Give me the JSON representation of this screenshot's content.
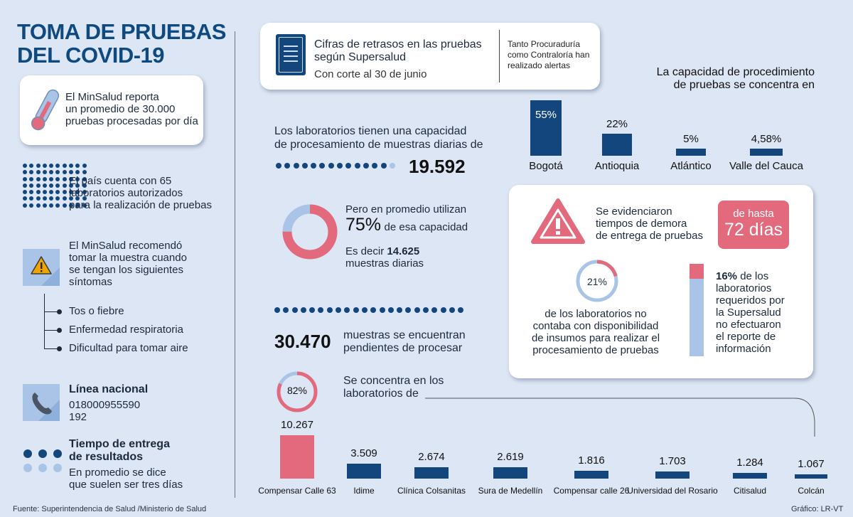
{
  "header": {
    "title_line1": "TOMA DE PRUEBAS",
    "title_line2": "DEL COVID-19"
  },
  "left": {
    "minsalud_report": [
      "El MinSalud reporta",
      "un promedio de 30.000",
      "pruebas procesadas por día"
    ],
    "labs_text": [
      "El país cuenta con 65",
      "laboratorios autorizados",
      "para la realización de pruebas"
    ],
    "recommend_text": [
      "El MinSalud recomendó",
      "tomar la muestra cuando",
      "se tengan los siguientes",
      "síntomas"
    ],
    "symptoms": [
      "Tos o fiebre",
      "Enfermedad respiratoria",
      "Dificultad para tomar aire"
    ],
    "line_title": "Línea nacional",
    "line_number": "018000955590",
    "line_short": "192",
    "delivery_title": [
      "Tiempo de entrega",
      "de resultados"
    ],
    "delivery_text": [
      "En promedio se dice",
      "que suelen ser tres días"
    ]
  },
  "delays_card": {
    "title_line1": "Cifras de retrasos en las pruebas",
    "title_line2": "según Supersalud",
    "cutoff": "Con corte al 30 de junio",
    "note": [
      "Tanto Procuraduría",
      "como Contraloría han",
      "realizado alertas"
    ]
  },
  "capacity": {
    "text": [
      "Los laboratorios tienen una capacidad",
      "de procesamiento de muestras diarias de"
    ],
    "value": "19.592",
    "use_intro": "Pero en promedio utilizan",
    "use_percent": "75%",
    "use_suffix": "de esa capacidad",
    "use_percent_value": 75,
    "daily_prefix": "Es decir",
    "daily_value": "14.625",
    "daily_suffix": "muestras diarias"
  },
  "pending": {
    "value": "30.470",
    "text": [
      "muestras se encuentran",
      "pendientes de procesar"
    ],
    "concentration_percent": "82%",
    "concentration_value": 82,
    "concentration_text": [
      "Se concentra en los",
      "laboratorios de"
    ]
  },
  "regions_chart": {
    "title": [
      "La capacidad de procedimiento",
      "de pruebas se concentra en"
    ]
  },
  "delay_card": {
    "text": [
      "Se evidenciaron",
      "tiempos de demora",
      "de entrega de pruebas"
    ],
    "badge_line1": "de hasta",
    "badge_line2": "72 días",
    "insumos_percent": "21%",
    "insumos_value": 21,
    "insumos_text": [
      "de los laboratorios no",
      "contaba con disponibilidad",
      "de insumos para realizar el",
      "procesamiento de pruebas"
    ],
    "report_percent": "16%",
    "report_value": 16,
    "report_text_first": "de los",
    "report_text": [
      "laboratorios",
      "requeridos por",
      "la Supersalud",
      "no efectuaron",
      "el reporte de",
      "información"
    ]
  },
  "footer": {
    "source": "Fuente: Superintendencia de Salud /Ministerio de Salud",
    "credit": "Gráfico: LR-VT"
  },
  "colors": {
    "navy": "#12467d",
    "pink": "#e36a7c",
    "light_blue": "#a9c4e6",
    "background": "#dde6f4"
  },
  "chart_data": [
    {
      "type": "bar",
      "title": "La capacidad de procedimiento de pruebas se concentra en",
      "categories": [
        "Bogotá",
        "Antioquia",
        "Atlántico",
        "Valle del Cauca"
      ],
      "values": [
        55,
        22,
        5,
        4.58
      ],
      "value_labels": [
        "55%",
        "22%",
        "5%",
        "4,58%"
      ]
    },
    {
      "type": "bar",
      "title": "",
      "categories": [
        "Compensar Calle 63",
        "Idime",
        "Clínica Colsanitas",
        "Sura de Medellín",
        "Compensar calle 26",
        "Universidad del Rosario",
        "Citisalud",
        "Colcán"
      ],
      "values": [
        10267,
        3509,
        2674,
        2619,
        1816,
        1703,
        1284,
        1067
      ],
      "value_labels": [
        "10.267",
        "3.509",
        "2.674",
        "2.619",
        "1.816",
        "1.703",
        "1.284",
        "1.067"
      ]
    }
  ]
}
